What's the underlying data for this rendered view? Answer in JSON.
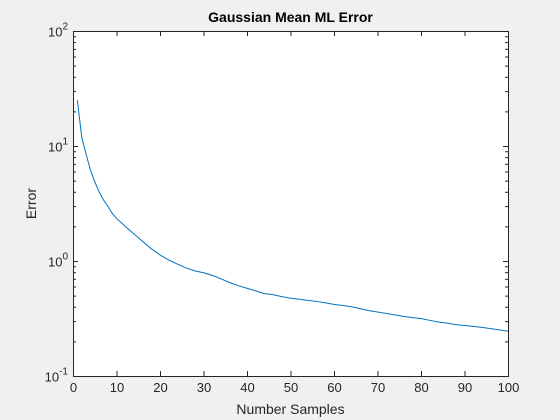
{
  "chart_data": {
    "type": "line",
    "title": "Gaussian Mean ML Error",
    "xlabel": "Number Samples",
    "ylabel": "Error",
    "xlim": [
      0,
      100
    ],
    "ylim": [
      0.1,
      100
    ],
    "yscale": "log",
    "grid": false,
    "xticks": [
      "0",
      "10",
      "20",
      "30",
      "40",
      "50",
      "60",
      "70",
      "80",
      "90",
      "100"
    ],
    "yticks": [
      {
        "base": "10",
        "exp": "-1"
      },
      {
        "base": "10",
        "exp": "0"
      },
      {
        "base": "10",
        "exp": "1"
      },
      {
        "base": "10",
        "exp": "2"
      }
    ],
    "colors": {
      "line": "#0072BD",
      "axes": "#262626",
      "plot_bg": "#ffffff",
      "fig_bg": "#f0f0f0"
    },
    "series": [
      {
        "x": [
          1,
          2,
          3,
          4,
          5,
          6,
          7,
          8,
          9,
          10,
          12,
          14,
          16,
          18,
          20,
          22,
          24,
          26,
          28,
          30,
          32,
          34,
          36,
          38,
          40,
          42,
          44,
          46,
          48,
          50,
          52,
          54,
          56,
          58,
          60,
          62,
          64,
          66,
          68,
          70,
          72,
          74,
          76,
          78,
          80,
          82,
          84,
          86,
          88,
          90,
          92,
          94,
          96,
          98,
          100
        ],
        "y": [
          25,
          12,
          8.5,
          6.2,
          4.9,
          4.0,
          3.4,
          3.0,
          2.6,
          2.35,
          2.0,
          1.72,
          1.48,
          1.28,
          1.13,
          1.02,
          0.94,
          0.87,
          0.82,
          0.79,
          0.75,
          0.7,
          0.65,
          0.61,
          0.58,
          0.55,
          0.52,
          0.51,
          0.49,
          0.475,
          0.465,
          0.455,
          0.445,
          0.432,
          0.42,
          0.41,
          0.4,
          0.385,
          0.37,
          0.36,
          0.35,
          0.34,
          0.33,
          0.322,
          0.316,
          0.305,
          0.295,
          0.288,
          0.28,
          0.275,
          0.27,
          0.265,
          0.258,
          0.252,
          0.245
        ]
      }
    ]
  }
}
